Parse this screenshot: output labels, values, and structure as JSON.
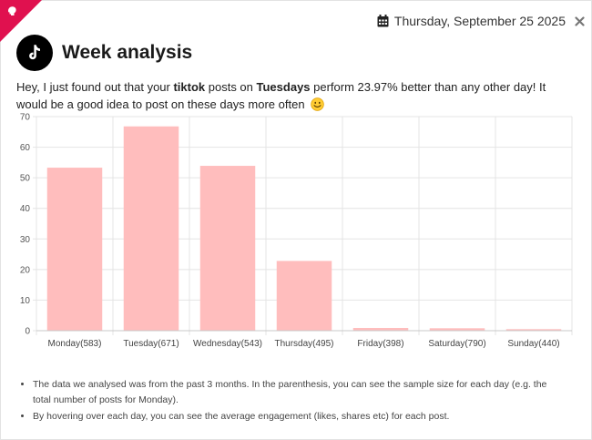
{
  "header": {
    "date": "Thursday, September 25 2025",
    "title": "Week analysis",
    "logo_icon": "tiktok-icon",
    "accent": "#e0114f"
  },
  "message": {
    "p1": "Hey, I just found out that your ",
    "platform": "tiktok",
    "p2": " posts on ",
    "day": "Tuesdays",
    "p3": " perform 23.97% better than any other day! It would be a good idea to post on these days more often",
    "emoji_icon": "smiling-face-emoji"
  },
  "chart_data": {
    "type": "bar",
    "categories": [
      "Monday(583)",
      "Tuesday(671)",
      "Wednesday(543)",
      "Thursday(495)",
      "Friday(398)",
      "Saturday(790)",
      "Sunday(440)"
    ],
    "values": [
      53.3,
      66.8,
      53.9,
      22.8,
      0.9,
      0.8,
      0.5
    ],
    "ylim": [
      0,
      70
    ],
    "yticks": [
      0,
      10,
      20,
      30,
      40,
      50,
      60,
      70
    ],
    "grid": true,
    "bar_color": "#ffbdbd"
  },
  "notes": [
    "The data we analysed was from the past 3 months. In the parenthesis, you can see the sample size for each day (e.g. the total number of posts for Monday).",
    "By hovering over each day, you can see the average engagement (likes, shares etc) for each post."
  ]
}
